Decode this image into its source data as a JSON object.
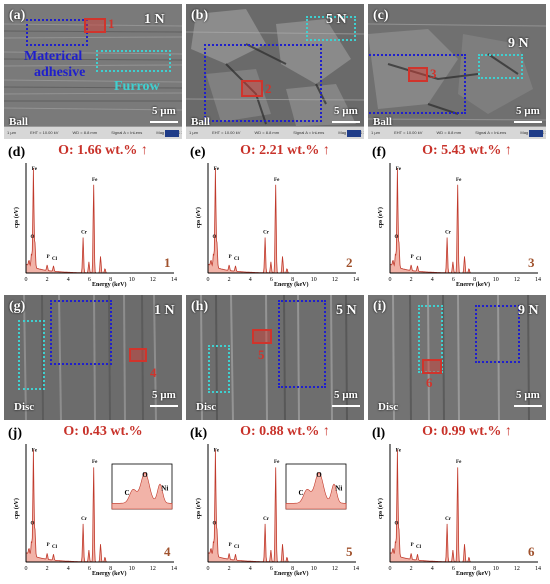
{
  "top_row": [
    {
      "label": "(a)",
      "load": "1 N",
      "scale": "5 µm",
      "surface": "Ball",
      "region": "1",
      "annotations": {
        "material": "Materical",
        "adhesive": "adhesive",
        "furrow": "Furrow"
      }
    },
    {
      "label": "(b)",
      "load": "5 N",
      "scale": "5 µm",
      "surface": "Ball",
      "region": "2"
    },
    {
      "label": "(c)",
      "load": "9 N",
      "scale": "5 µm",
      "surface": "Ball",
      "region": "3"
    }
  ],
  "bottom_row": [
    {
      "label": "(g)",
      "load": "1 N",
      "scale": "5 µm",
      "surface": "Disc",
      "region": "4"
    },
    {
      "label": "(h)",
      "load": "5 N",
      "scale": "5 µm",
      "surface": "Disc",
      "region": "5"
    },
    {
      "label": "(i)",
      "load": "9 N",
      "scale": "5 µm",
      "surface": "Disc",
      "region": "6"
    }
  ],
  "sem_strip": {
    "a": "1 µm",
    "b": "EHT = 10.00 kV",
    "c": "WD = 8.8 mm",
    "d": "Signal A = InLens",
    "e": "Mag = 5.00 K X"
  },
  "spectra_top": [
    {
      "label": "(d)",
      "title": "O: 1.66 wt.% ↑",
      "number": "1"
    },
    {
      "label": "(e)",
      "title": "O: 2.21 wt.% ↑",
      "number": "2"
    },
    {
      "label": "(f)",
      "title": "O: 5.43 wt.% ↑",
      "number": "3"
    }
  ],
  "spectra_bottom": [
    {
      "label": "(j)",
      "title": "O: 0.43 wt.%",
      "number": "4"
    },
    {
      "label": "(k)",
      "title": "O: 0.88 wt.% ↑",
      "number": "5"
    },
    {
      "label": "(l)",
      "title": "O: 0.99 wt.% ↑",
      "number": "6"
    }
  ],
  "axis": {
    "ylabel": "cps (eV)",
    "xlabel": "Energy (keV)",
    "xlabel_f": "Enerev (keV)",
    "xticks": [
      "0",
      "2",
      "4",
      "6",
      "8",
      "10",
      "12",
      "14"
    ]
  },
  "inset_labels": {
    "c": "C",
    "o": "O",
    "ni": "Ni"
  },
  "peak_labels": {
    "fe": "Fe",
    "cr": "Cr",
    "o": "O",
    "p": "P",
    "cl": "Cl",
    "ni": "Ni",
    "c": "C"
  },
  "colors": {
    "spectrum_fill": "#f2b3a8",
    "spectrum_line": "#c0392b",
    "title": "#c8322a",
    "blue_box": "#1f1fcc",
    "cyan_box": "#3fd0d0",
    "red_box": "#d0342c"
  }
}
